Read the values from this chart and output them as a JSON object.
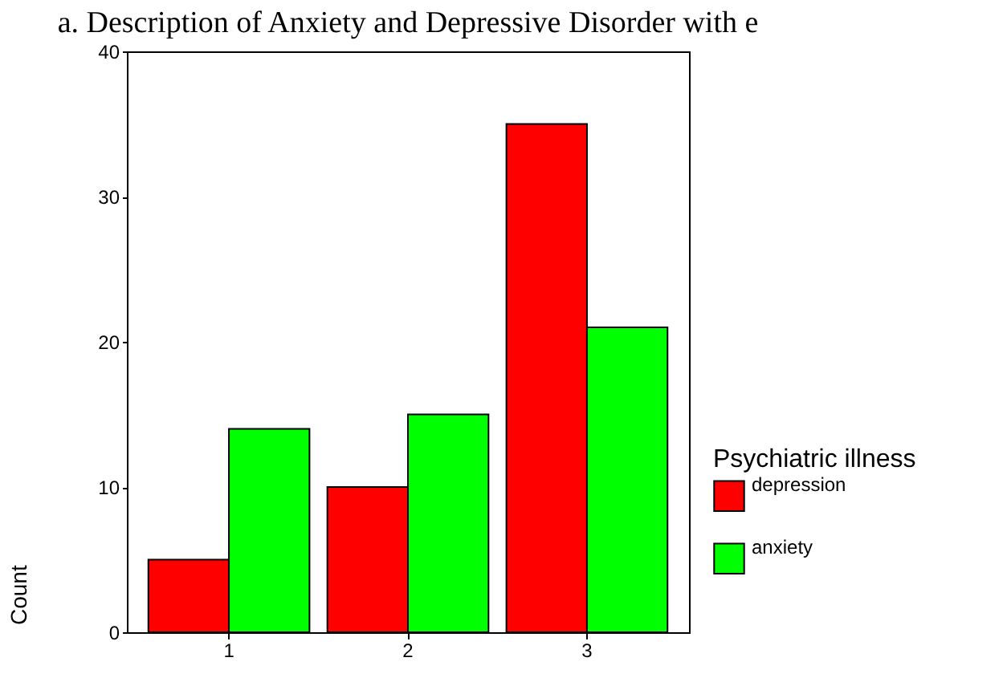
{
  "chart_data": {
    "type": "bar",
    "title": "a.    Description of Anxiety and Depressive Disorder with e",
    "ylabel": "Count",
    "legend_title": "Psychiatric illness",
    "categories": [
      "1",
      "2",
      "3"
    ],
    "series": [
      {
        "name": "depression",
        "color": "#ff0000",
        "values": [
          5,
          10,
          35
        ]
      },
      {
        "name": "anxiety",
        "color": "#00ff00",
        "values": [
          14,
          15,
          21
        ]
      }
    ],
    "ylim": [
      0,
      40
    ],
    "yticks": [
      0,
      10,
      20,
      30,
      40
    ],
    "grid": false,
    "legend": "right"
  }
}
